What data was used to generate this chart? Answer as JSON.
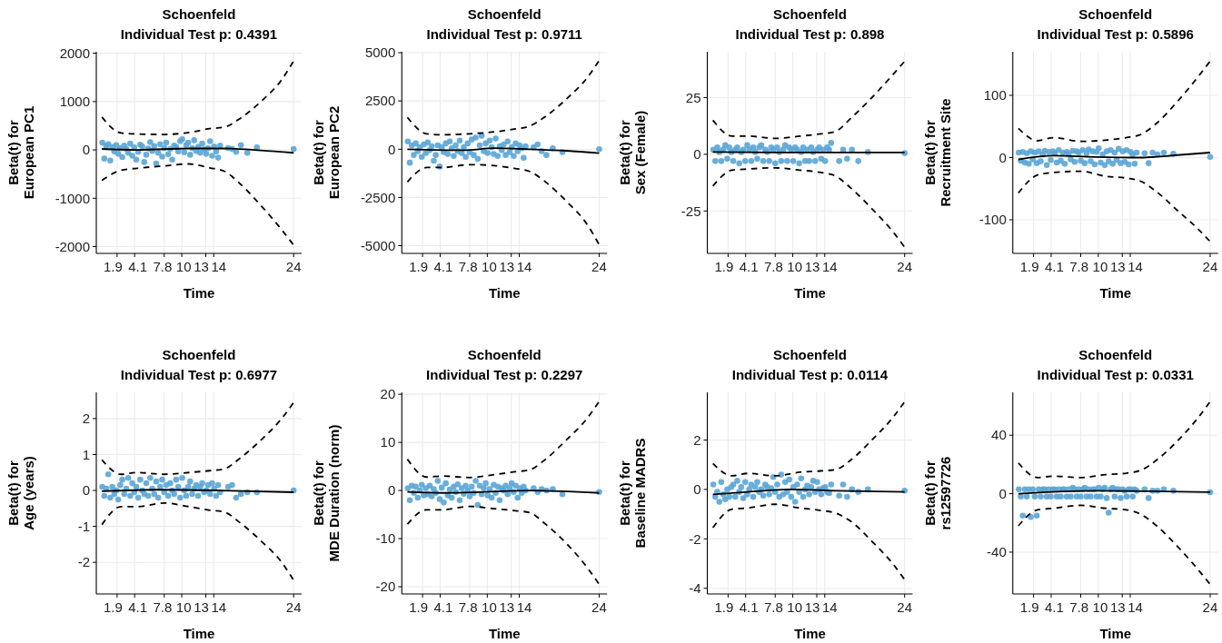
{
  "chart_data": [
    {
      "type": "scatter",
      "title": "Schoenfeld",
      "subtitle": "Individual Test p: 0.4391",
      "xlabel": "Time",
      "ylabel": "Beta(t) for\nEuropean PC1",
      "grid": true,
      "xlim": [
        -0.7,
        25
      ],
      "xticks": [
        1.9,
        4.1,
        7.8,
        10,
        13,
        14,
        24
      ],
      "ylim": [
        -2140,
        2030
      ],
      "yticks": [
        -2000,
        -1000,
        0,
        1000,
        2000
      ],
      "x": [
        0.05,
        0.3,
        0.55,
        0.8,
        1.05,
        1.3,
        1.55,
        1.8,
        2.05,
        2.3,
        2.55,
        2.8,
        3.05,
        3.3,
        3.55,
        3.8,
        4.05,
        4.3,
        4.55,
        4.8,
        5.05,
        5.3,
        5.55,
        5.8,
        6.05,
        6.3,
        6.55,
        6.8,
        7.05,
        7.3,
        7.55,
        7.8,
        8.05,
        8.3,
        8.55,
        8.8,
        9.05,
        9.3,
        9.55,
        9.8,
        10.05,
        10.3,
        10.55,
        10.8,
        11.05,
        11.3,
        11.55,
        11.8,
        12.05,
        12.3,
        12.55,
        12.8,
        13.05,
        13.3,
        13.55,
        13.8,
        14.05,
        14.3,
        14.55,
        14.8,
        15.8,
        16.3,
        16.8,
        17.4,
        18.2,
        19.4,
        24
      ],
      "series": [
        {
          "type": "scatter",
          "marker": "circle",
          "color": "#5aa5d6",
          "values": [
            150,
            -180,
            80,
            120,
            -220,
            60,
            -30,
            100,
            -80,
            40,
            -150,
            90,
            20,
            -60,
            130,
            -120,
            50,
            -200,
            -40,
            110,
            70,
            -250,
            -100,
            30,
            160,
            -20,
            80,
            -280,
            -60,
            120,
            -140,
            40,
            150,
            -90,
            20,
            -200,
            90,
            60,
            -30,
            180,
            220,
            -50,
            100,
            150,
            -100,
            40,
            200,
            -20,
            60,
            -60,
            130,
            10,
            -80,
            40,
            180,
            -120,
            70,
            -30,
            -160,
            90,
            40,
            20,
            -40,
            100,
            -60,
            50,
            20
          ]
        },
        {
          "type": "line",
          "marker": "none",
          "color": "#000000",
          "line_style": "solid",
          "x": [
            0,
            4.4,
            10.9,
            15.3,
            19.9,
            24
          ],
          "values": [
            20,
            0,
            30,
            30,
            -10,
            -60
          ]
        },
        {
          "type": "line",
          "marker": "none",
          "color": "#000000",
          "line_style": "dashed",
          "x": [
            0,
            2.4,
            4.4,
            7.8,
            10.9,
            13.5,
            15.3,
            17.3,
            19.9,
            22.5,
            24
          ],
          "values": [
            680,
            350,
            330,
            320,
            360,
            440,
            470,
            650,
            1000,
            1450,
            1840
          ]
        },
        {
          "type": "line",
          "marker": "none",
          "color": "#000000",
          "line_style": "dashed",
          "x": [
            0,
            2.4,
            4.4,
            7.8,
            10.9,
            13.5,
            15.3,
            17.3,
            19.9,
            22.5,
            24
          ],
          "values": [
            -630,
            -420,
            -380,
            -330,
            -290,
            -370,
            -440,
            -700,
            -1150,
            -1650,
            -1970
          ]
        }
      ]
    },
    {
      "type": "scatter",
      "title": "Schoenfeld",
      "subtitle": "Individual Test p: 0.9711",
      "xlabel": "Time",
      "ylabel": "Beta(t) for\nEuropean PC2",
      "grid": true,
      "xlim": [
        -0.7,
        25
      ],
      "xticks": [
        1.9,
        4.1,
        7.8,
        10,
        13,
        14,
        24
      ],
      "ylim": [
        -5400,
        5050
      ],
      "yticks": [
        -5000,
        -2500,
        0,
        2500,
        5000
      ],
      "x": [
        0.05,
        0.3,
        0.55,
        0.8,
        1.05,
        1.3,
        1.55,
        1.8,
        2.05,
        2.3,
        2.55,
        2.8,
        3.05,
        3.3,
        3.55,
        3.8,
        4.05,
        4.3,
        4.55,
        4.8,
        5.05,
        5.3,
        5.55,
        5.8,
        6.05,
        6.3,
        6.55,
        6.8,
        7.05,
        7.3,
        7.55,
        7.8,
        8.05,
        8.3,
        8.55,
        8.8,
        9.05,
        9.3,
        9.55,
        9.8,
        10.05,
        10.3,
        10.55,
        10.8,
        11.05,
        11.3,
        11.55,
        11.8,
        12.05,
        12.3,
        12.55,
        12.8,
        13.05,
        13.3,
        13.55,
        13.8,
        14.05,
        14.3,
        14.55,
        14.8,
        15.8,
        16.3,
        16.8,
        17.4,
        18.2,
        19.4,
        24
      ],
      "series": [
        {
          "type": "scatter",
          "marker": "circle",
          "color": "#5aa5d6",
          "values": [
            400,
            -700,
            200,
            -300,
            300,
            -100,
            100,
            -400,
            250,
            -200,
            350,
            -50,
            150,
            -600,
            -300,
            200,
            -900,
            100,
            -150,
            300,
            -250,
            400,
            50,
            -350,
            200,
            -100,
            450,
            -200,
            100,
            -400,
            300,
            -150,
            500,
            -300,
            600,
            -500,
            200,
            700,
            -100,
            300,
            -200,
            450,
            100,
            -250,
            550,
            -350,
            150,
            -50,
            250,
            -300,
            400,
            -150,
            100,
            -350,
            300,
            -100,
            200,
            50,
            -450,
            150,
            100,
            250,
            -100,
            -300,
            50,
            -150,
            0
          ]
        },
        {
          "type": "line",
          "marker": "none",
          "color": "#000000",
          "line_style": "solid",
          "x": [
            0,
            7,
            10.9,
            15.3,
            19.9,
            24
          ],
          "values": [
            0,
            -50,
            50,
            0,
            -80,
            -200
          ]
        },
        {
          "type": "line",
          "marker": "none",
          "color": "#000000",
          "line_style": "dashed",
          "x": [
            0,
            2.4,
            4.4,
            7.8,
            10.9,
            13.5,
            15.3,
            17.3,
            19.9,
            22.5,
            24
          ],
          "values": [
            1650,
            800,
            750,
            800,
            900,
            1050,
            1200,
            1700,
            2600,
            3700,
            4600
          ]
        },
        {
          "type": "line",
          "marker": "none",
          "color": "#000000",
          "line_style": "dashed",
          "x": [
            0,
            2.4,
            4.4,
            7.8,
            10.9,
            13.5,
            15.3,
            17.3,
            19.9,
            22.5,
            24
          ],
          "values": [
            -1700,
            -950,
            -950,
            -800,
            -850,
            -1000,
            -1150,
            -1700,
            -2700,
            -3900,
            -4950
          ]
        }
      ]
    },
    {
      "type": "scatter",
      "title": "Schoenfeld",
      "subtitle": "Individual Test p: 0.898",
      "xlabel": "Time",
      "ylabel": "Beta(t) for\nSex (Female)",
      "grid": true,
      "xlim": [
        -0.7,
        25
      ],
      "xticks": [
        1.9,
        4.1,
        7.8,
        10,
        13,
        14,
        24
      ],
      "ylim": [
        -43.7,
        45.2
      ],
      "yticks": [
        -25,
        0,
        25
      ],
      "x": [
        0.05,
        0.3,
        0.55,
        0.8,
        1.05,
        1.3,
        1.55,
        1.8,
        2.05,
        2.3,
        2.55,
        2.8,
        3.05,
        3.3,
        3.55,
        3.8,
        4.05,
        4.3,
        4.55,
        4.8,
        5.05,
        5.3,
        5.55,
        5.8,
        6.05,
        6.3,
        6.55,
        6.8,
        7.05,
        7.3,
        7.55,
        7.8,
        8.05,
        8.3,
        8.55,
        8.8,
        9.05,
        9.3,
        9.55,
        9.8,
        10.05,
        10.3,
        10.55,
        10.8,
        11.05,
        11.3,
        11.55,
        11.8,
        12.05,
        12.3,
        12.55,
        12.8,
        13.05,
        13.3,
        13.55,
        13.8,
        14.05,
        14.3,
        14.55,
        14.8,
        15.8,
        16.3,
        16.8,
        17.4,
        18.2,
        19.4,
        24
      ],
      "series": [
        {
          "type": "scatter",
          "marker": "circle",
          "color": "#5aa5d6",
          "values": [
            2,
            -3,
            3,
            1,
            -3,
            2,
            4,
            -2,
            3,
            1,
            -3,
            2,
            3,
            -4,
            1,
            2,
            -3,
            4,
            2,
            -3,
            3,
            1,
            -2,
            3,
            4,
            -3,
            2,
            1,
            -3,
            3,
            2,
            -4,
            3,
            1,
            -3,
            2,
            4,
            -3,
            3,
            2,
            -3,
            3,
            2,
            -4,
            1,
            3,
            -3,
            2,
            -3,
            3,
            1,
            -3,
            2,
            3,
            -2,
            2,
            -3,
            3,
            2,
            5,
            -3,
            2,
            -2,
            2,
            -3,
            1,
            0.5
          ]
        },
        {
          "type": "line",
          "marker": "none",
          "color": "#000000",
          "line_style": "solid",
          "x": [
            0,
            12.2,
            24
          ],
          "values": [
            1,
            0.8,
            0.8
          ]
        },
        {
          "type": "line",
          "marker": "none",
          "color": "#000000",
          "line_style": "dashed",
          "x": [
            0,
            2.4,
            4.4,
            7.8,
            10.9,
            13.5,
            15.3,
            17.3,
            19.9,
            22.5,
            24
          ],
          "values": [
            15,
            8,
            8,
            7,
            8,
            9,
            10,
            16,
            25,
            35,
            41
          ]
        },
        {
          "type": "line",
          "marker": "none",
          "color": "#000000",
          "line_style": "dashed",
          "x": [
            0,
            2.4,
            4.4,
            7.8,
            10.9,
            13.5,
            15.3,
            17.3,
            19.9,
            22.5,
            24
          ],
          "values": [
            -14,
            -7,
            -6.5,
            -6,
            -7,
            -8,
            -9.5,
            -15,
            -24,
            -34,
            -41
          ]
        }
      ]
    },
    {
      "type": "scatter",
      "title": "Schoenfeld",
      "subtitle": "Individual Test p: 0.5896",
      "xlabel": "Time",
      "ylabel": "Beta(t) for\nRecruitment Site",
      "grid": true,
      "xlim": [
        -0.7,
        25
      ],
      "xticks": [
        1.9,
        4.1,
        7.8,
        10,
        13,
        14,
        24
      ],
      "ylim": [
        -154,
        170
      ],
      "yticks": [
        -100,
        0,
        100
      ],
      "x": [
        0.05,
        0.3,
        0.55,
        0.8,
        1.05,
        1.3,
        1.55,
        1.8,
        2.05,
        2.3,
        2.55,
        2.8,
        3.05,
        3.3,
        3.55,
        3.8,
        4.05,
        4.3,
        4.55,
        4.8,
        5.05,
        5.3,
        5.55,
        5.8,
        6.05,
        6.3,
        6.55,
        6.8,
        7.05,
        7.3,
        7.55,
        7.8,
        8.05,
        8.3,
        8.55,
        8.8,
        9.05,
        9.3,
        9.55,
        9.8,
        10.05,
        10.3,
        10.55,
        10.8,
        11.05,
        11.3,
        11.55,
        11.8,
        12.05,
        12.3,
        12.55,
        12.8,
        13.05,
        13.3,
        13.55,
        13.8,
        14.05,
        14.3,
        14.55,
        14.8,
        15.8,
        16.3,
        16.8,
        17.4,
        18.2,
        19.4,
        24
      ],
      "series": [
        {
          "type": "scatter",
          "marker": "circle",
          "color": "#5aa5d6",
          "values": [
            8,
            -5,
            9,
            -8,
            7,
            -10,
            10,
            -3,
            8,
            -9,
            10,
            -6,
            5,
            11,
            -12,
            9,
            -4,
            10,
            7,
            -8,
            12,
            -5,
            8,
            -10,
            9,
            6,
            -3,
            11,
            -7,
            10,
            8,
            -5,
            12,
            -9,
            7,
            13,
            -6,
            10,
            -11,
            9,
            15,
            -8,
            5,
            -12,
            10,
            -6,
            12,
            -10,
            8,
            -4,
            14,
            -9,
            10,
            -7,
            12,
            -11,
            9,
            5,
            -10,
            8,
            7,
            -9,
            8,
            5,
            8,
            6,
            1
          ]
        },
        {
          "type": "line",
          "marker": "none",
          "color": "#000000",
          "line_style": "solid",
          "x": [
            0,
            4.4,
            9.6,
            15.3,
            19.9,
            24
          ],
          "values": [
            -3,
            3,
            1,
            0,
            4,
            8
          ]
        },
        {
          "type": "line",
          "marker": "none",
          "color": "#000000",
          "line_style": "dashed",
          "x": [
            0,
            2.4,
            4.4,
            7.8,
            10.9,
            13.5,
            15.3,
            17.3,
            19.9,
            22.5,
            24
          ],
          "values": [
            47,
            27,
            32,
            26,
            28,
            32,
            37,
            55,
            90,
            130,
            155
          ]
        },
        {
          "type": "line",
          "marker": "none",
          "color": "#000000",
          "line_style": "dashed",
          "x": [
            0,
            2.4,
            4.4,
            7.8,
            10.9,
            13.5,
            15.3,
            17.3,
            19.9,
            22.5,
            24
          ],
          "values": [
            -57,
            -28,
            -24,
            -22,
            -30,
            -33,
            -38,
            -55,
            -85,
            -115,
            -135
          ]
        }
      ]
    },
    {
      "type": "scatter",
      "title": "Schoenfeld",
      "subtitle": "Individual Test p: 0.6977",
      "xlabel": "Time",
      "ylabel": "Beta(t) for\nAge (years)",
      "grid": true,
      "xlim": [
        -0.7,
        25
      ],
      "xticks": [
        1.9,
        4.1,
        7.8,
        10,
        13,
        14,
        24
      ],
      "ylim": [
        -2.88,
        2.73
      ],
      "yticks": [
        -2,
        -1,
        0,
        1,
        2
      ],
      "x": [
        0.05,
        0.3,
        0.55,
        0.8,
        1.05,
        1.3,
        1.55,
        1.8,
        2.05,
        2.3,
        2.55,
        2.8,
        3.05,
        3.3,
        3.55,
        3.8,
        4.05,
        4.3,
        4.55,
        4.8,
        5.05,
        5.3,
        5.55,
        5.8,
        6.05,
        6.3,
        6.55,
        6.8,
        7.05,
        7.3,
        7.55,
        7.8,
        8.05,
        8.3,
        8.55,
        8.8,
        9.05,
        9.3,
        9.55,
        9.8,
        10.05,
        10.3,
        10.55,
        10.8,
        11.05,
        11.3,
        11.55,
        11.8,
        12.05,
        12.3,
        12.55,
        12.8,
        13.05,
        13.3,
        13.55,
        13.8,
        14.05,
        14.3,
        14.55,
        14.8,
        15.8,
        16.3,
        16.8,
        17.4,
        18.2,
        19.4,
        24
      ],
      "series": [
        {
          "type": "scatter",
          "marker": "circle",
          "color": "#5aa5d6",
          "values": [
            0.1,
            -0.15,
            0.05,
            0.45,
            -0.2,
            0.1,
            -0.1,
            0,
            -0.25,
            0.15,
            0.3,
            -0.1,
            0.05,
            0.35,
            -0.15,
            0.2,
            -0.05,
            0.1,
            -0.2,
            0.3,
            0,
            -0.1,
            0.2,
            -0.15,
            0.35,
            0.05,
            -0.1,
            0.25,
            -0.2,
            0.1,
            0.3,
            -0.05,
            0.15,
            -0.15,
            0.2,
            0,
            -0.1,
            0.3,
            0.1,
            -0.2,
            0.35,
            0,
            -0.15,
            0.1,
            0.25,
            -0.1,
            0.05,
            0.15,
            -0.15,
            0.1,
            0.2,
            -0.05,
            0,
            0.15,
            -0.1,
            0.2,
            0.05,
            -0.15,
            0.15,
            -0.05,
            0.1,
            0.15,
            -0.2,
            -0.1,
            -0.05,
            -0.05,
            0
          ]
        },
        {
          "type": "line",
          "marker": "none",
          "color": "#000000",
          "line_style": "solid",
          "x": [
            0,
            7,
            14.7,
            24
          ],
          "values": [
            -0.02,
            0.02,
            0,
            -0.05
          ]
        },
        {
          "type": "line",
          "marker": "none",
          "color": "#000000",
          "line_style": "dashed",
          "x": [
            0,
            2.4,
            4.4,
            7.8,
            10.9,
            13.5,
            15.3,
            17.3,
            19.9,
            22.5,
            24
          ],
          "values": [
            0.85,
            0.45,
            0.5,
            0.45,
            0.5,
            0.55,
            0.6,
            0.9,
            1.4,
            2,
            2.45
          ]
        },
        {
          "type": "line",
          "marker": "none",
          "color": "#000000",
          "line_style": "dashed",
          "x": [
            0,
            2.4,
            4.4,
            7.8,
            10.9,
            13.5,
            15.3,
            17.3,
            19.9,
            22.5,
            24
          ],
          "values": [
            -0.95,
            -0.45,
            -0.45,
            -0.35,
            -0.45,
            -0.55,
            -0.6,
            -0.9,
            -1.4,
            -2,
            -2.5
          ]
        }
      ]
    },
    {
      "type": "scatter",
      "title": "Schoenfeld",
      "subtitle": "Individual Test p: 0.2297",
      "xlabel": "Time",
      "ylabel": "Beta(t) for\nMDE Duration (norm)",
      "grid": true,
      "xlim": [
        -0.7,
        25
      ],
      "xticks": [
        1.9,
        4.1,
        7.8,
        10,
        13,
        14,
        24
      ],
      "ylim": [
        -21.5,
        20.4
      ],
      "yticks": [
        -20,
        -10,
        0,
        10,
        20
      ],
      "x": [
        0.05,
        0.3,
        0.55,
        0.8,
        1.05,
        1.3,
        1.55,
        1.8,
        2.05,
        2.3,
        2.55,
        2.8,
        3.05,
        3.3,
        3.55,
        3.8,
        4.05,
        4.3,
        4.55,
        4.8,
        5.05,
        5.3,
        5.55,
        5.8,
        6.05,
        6.3,
        6.55,
        6.8,
        7.05,
        7.3,
        7.55,
        7.8,
        8.05,
        8.3,
        8.55,
        8.8,
        9.05,
        9.3,
        9.55,
        9.8,
        10.05,
        10.3,
        10.55,
        10.8,
        11.05,
        11.3,
        11.55,
        11.8,
        12.05,
        12.3,
        12.55,
        12.8,
        13.05,
        13.3,
        13.55,
        13.8,
        14.05,
        14.3,
        14.55,
        14.8,
        15.8,
        16.3,
        16.8,
        17.4,
        18.2,
        19.4,
        24
      ],
      "series": [
        {
          "type": "scatter",
          "marker": "circle",
          "color": "#5aa5d6",
          "values": [
            0.5,
            -2,
            1,
            -0.5,
            0.8,
            -1.5,
            0,
            1.2,
            -1,
            0.5,
            -0.8,
            1,
            -1.2,
            0.3,
            -0.5,
            2,
            -1.8,
            0.6,
            -2.5,
            1.5,
            -1,
            0.2,
            -1.5,
            0.8,
            -0.3,
            1.3,
            -2,
            0.5,
            -0.7,
            1,
            0,
            -1.2,
            0.8,
            -0.5,
            2,
            -3,
            1,
            -0.8,
            0.5,
            1.5,
            -1,
            0.3,
            -1.5,
            1.2,
            -0.5,
            0.8,
            -2,
            0.5,
            0,
            1,
            -0.8,
            0.5,
            1.5,
            -0.3,
            1,
            -1.5,
            0.5,
            -0.5,
            0.8,
            0,
            0.5,
            -0.3,
            0.3,
            0,
            0.3,
            -0.8,
            -0.3
          ]
        },
        {
          "type": "line",
          "marker": "none",
          "color": "#000000",
          "line_style": "solid",
          "x": [
            0,
            4.4,
            9.6,
            15.3,
            24
          ],
          "values": [
            -0.3,
            -0.5,
            -0.3,
            0,
            -0.5
          ]
        },
        {
          "type": "line",
          "marker": "none",
          "color": "#000000",
          "line_style": "dashed",
          "x": [
            0,
            2.4,
            4.4,
            7.8,
            10.9,
            13.5,
            15.3,
            17.3,
            19.9,
            22.5,
            24
          ],
          "values": [
            6.5,
            2.8,
            3,
            2.7,
            3.3,
            3.9,
            4.3,
            6.5,
            10.5,
            15,
            18.5
          ]
        },
        {
          "type": "line",
          "marker": "none",
          "color": "#000000",
          "line_style": "dashed",
          "x": [
            0,
            2.4,
            4.4,
            7.8,
            10.9,
            13.5,
            15.3,
            17.3,
            19.9,
            22.5,
            24
          ],
          "values": [
            -7,
            -4,
            -4,
            -3.3,
            -3.8,
            -4.2,
            -4.6,
            -7,
            -11,
            -16,
            -19.5
          ]
        }
      ]
    },
    {
      "type": "scatter",
      "title": "Schoenfeld",
      "subtitle": "Individual Test p: 0.0114",
      "xlabel": "Time",
      "ylabel": "Beta(t) for\nBaseline MADRS",
      "grid": true,
      "xlim": [
        -0.7,
        25
      ],
      "xticks": [
        1.9,
        4.1,
        7.8,
        10,
        13,
        14,
        24
      ],
      "ylim": [
        -4.23,
        3.93
      ],
      "yticks": [
        -4,
        -2,
        0,
        2
      ],
      "x": [
        0.05,
        0.3,
        0.55,
        0.8,
        1.05,
        1.3,
        1.55,
        1.8,
        2.05,
        2.3,
        2.55,
        2.8,
        3.05,
        3.3,
        3.55,
        3.8,
        4.05,
        4.3,
        4.55,
        4.8,
        5.05,
        5.3,
        5.55,
        5.8,
        6.05,
        6.3,
        6.55,
        6.8,
        7.05,
        7.3,
        7.55,
        7.8,
        8.05,
        8.3,
        8.55,
        8.8,
        9.05,
        9.3,
        9.55,
        9.8,
        10.05,
        10.3,
        10.55,
        10.8,
        11.05,
        11.3,
        11.55,
        11.8,
        12.05,
        12.3,
        12.55,
        12.8,
        13.05,
        13.3,
        13.55,
        13.8,
        14.05,
        14.3,
        14.55,
        14.8,
        15.8,
        16.3,
        16.8,
        17.4,
        18.2,
        19.4,
        24
      ],
      "series": [
        {
          "type": "scatter",
          "marker": "circle",
          "color": "#5aa5d6",
          "values": [
            0.2,
            -0.3,
            -0.1,
            -0.5,
            0.3,
            -0.2,
            -0.4,
            0,
            -0.3,
            0.1,
            0.2,
            -0.3,
            0.35,
            -0.1,
            0.1,
            -0.35,
            0.3,
            -0.2,
            0,
            0.2,
            -0.3,
            0.1,
            0.3,
            -0.1,
            0,
            -0.25,
            0.2,
            0.1,
            -0.2,
            0.05,
            0.5,
            -0.1,
            0.2,
            -0.3,
            0.6,
            -0.2,
            0.3,
            -0.1,
            0.4,
            -0.3,
            0.1,
            -0.5,
            0.2,
            -0.1,
            0.45,
            -0.3,
            0,
            0.15,
            -0.2,
            0.1,
            0.35,
            -0.1,
            0.3,
            0,
            -0.2,
            0.05,
            0.1,
            -0.1,
            -0.15,
            0.2,
            -0.25,
            0.2,
            -0.3,
            0,
            -0.1,
            0,
            -0.05
          ]
        },
        {
          "type": "line",
          "marker": "none",
          "color": "#000000",
          "line_style": "solid",
          "x": [
            0,
            4.4,
            9.6,
            15.3,
            24
          ],
          "values": [
            -0.2,
            -0.1,
            0,
            -0.05,
            -0.1
          ]
        },
        {
          "type": "line",
          "marker": "none",
          "color": "#000000",
          "line_style": "dashed",
          "x": [
            0,
            2.4,
            4.4,
            7.8,
            10.9,
            13.5,
            15.3,
            17.3,
            19.9,
            22.5,
            24
          ],
          "values": [
            1.05,
            0.55,
            0.65,
            0.55,
            0.7,
            0.75,
            0.8,
            1.2,
            2,
            2.9,
            3.55
          ]
        },
        {
          "type": "line",
          "marker": "none",
          "color": "#000000",
          "line_style": "dashed",
          "x": [
            0,
            2.4,
            4.4,
            7.8,
            10.9,
            13.5,
            15.3,
            17.3,
            19.9,
            22.5,
            24
          ],
          "values": [
            -1.55,
            -0.8,
            -0.75,
            -0.6,
            -0.75,
            -0.85,
            -0.95,
            -1.3,
            -2.1,
            -3,
            -3.65
          ]
        }
      ]
    },
    {
      "type": "scatter",
      "title": "Schoenfeld",
      "subtitle": "Individual Test p: 0.0331",
      "xlabel": "Time",
      "ylabel": "Beta(t) for\nrs12597726",
      "grid": true,
      "xlim": [
        -0.7,
        25
      ],
      "xticks": [
        1.9,
        4.1,
        7.8,
        10,
        13,
        14,
        24
      ],
      "ylim": [
        -68.6,
        69.3
      ],
      "yticks": [
        -40,
        0,
        40
      ],
      "x": [
        0.05,
        0.3,
        0.55,
        0.8,
        1.05,
        1.3,
        1.55,
        1.8,
        2.05,
        2.3,
        2.55,
        2.8,
        3.05,
        3.3,
        3.55,
        3.8,
        4.05,
        4.3,
        4.55,
        4.8,
        5.05,
        5.3,
        5.55,
        5.8,
        6.05,
        6.3,
        6.55,
        6.8,
        7.05,
        7.3,
        7.55,
        7.8,
        8.05,
        8.3,
        8.55,
        8.8,
        9.05,
        9.3,
        9.55,
        9.8,
        10.05,
        10.3,
        10.55,
        10.8,
        11.05,
        11.3,
        11.55,
        11.8,
        12.05,
        12.3,
        12.55,
        12.8,
        13.05,
        13.3,
        13.55,
        13.8,
        14.05,
        14.3,
        14.55,
        14.8,
        15.8,
        16.3,
        16.8,
        17.4,
        18.2,
        19.4,
        24
      ],
      "series": [
        {
          "type": "scatter",
          "marker": "circle",
          "color": "#5aa5d6",
          "values": [
            3,
            -2,
            -15,
            3,
            -2,
            3,
            -16,
            3,
            -2,
            -15,
            3,
            -2,
            3,
            3,
            -2,
            3,
            -2,
            3,
            3,
            -2,
            3,
            -2,
            3,
            3,
            -2,
            3,
            -2,
            4,
            3,
            -2,
            3,
            -2,
            3,
            4,
            -2,
            3,
            -2,
            3,
            3,
            -2,
            4,
            -2,
            3,
            4,
            -3,
            -13,
            3,
            4,
            -2,
            3,
            3,
            -3,
            3,
            2,
            -2,
            3,
            3,
            -2,
            3,
            2,
            3,
            -3,
            2,
            2,
            3,
            2,
            1
          ]
        },
        {
          "type": "line",
          "marker": "none",
          "color": "#000000",
          "line_style": "solid",
          "x": [
            0,
            9.6,
            24
          ],
          "values": [
            0,
            2,
            1
          ]
        },
        {
          "type": "line",
          "marker": "none",
          "color": "#000000",
          "line_style": "dashed",
          "x": [
            0,
            2.4,
            4.4,
            7.8,
            10.9,
            13.5,
            15.3,
            17.3,
            19.9,
            22.5,
            24
          ],
          "values": [
            21,
            11,
            12,
            11,
            13,
            14,
            16,
            23,
            36,
            52,
            63
          ]
        },
        {
          "type": "line",
          "marker": "none",
          "color": "#000000",
          "line_style": "dashed",
          "x": [
            0,
            2.4,
            4.4,
            7.8,
            10.9,
            13.5,
            15.3,
            17.3,
            19.9,
            22.5,
            24
          ],
          "values": [
            -22,
            -11,
            -10,
            -8,
            -10,
            -11,
            -14,
            -22,
            -36,
            -52,
            -62
          ]
        }
      ]
    }
  ]
}
